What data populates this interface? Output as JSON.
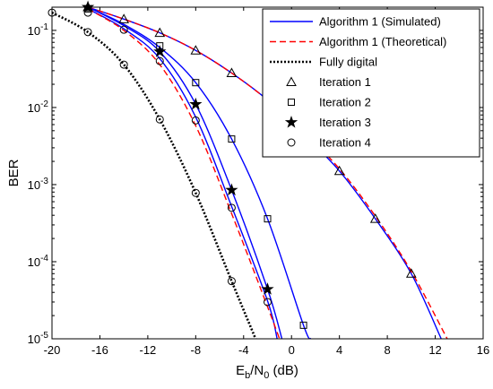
{
  "chart_data": {
    "type": "line",
    "title": "",
    "xlabel": {
      "main": "E",
      "sub1": "b",
      "mid": "/N",
      "sub2": "0",
      "tail": " (dB)"
    },
    "ylabel": "BER",
    "xlim": [
      -20,
      16
    ],
    "ylim": [
      1e-05,
      0.2
    ],
    "y_scale": "log",
    "x_ticks": [
      -20,
      -16,
      -12,
      -8,
      -4,
      0,
      4,
      8,
      12,
      16
    ],
    "x_tick_labels": [
      "-20",
      "-16",
      "-12",
      "-8",
      "-4",
      "0",
      "4",
      "8",
      "12",
      "16"
    ],
    "y_ticks": [
      {
        "value": 0.1,
        "base": "10",
        "exp": "-1"
      },
      {
        "value": 0.01,
        "base": "10",
        "exp": "-2"
      },
      {
        "value": 0.001,
        "base": "10",
        "exp": "-3"
      },
      {
        "value": 0.0001,
        "base": "10",
        "exp": "-4"
      },
      {
        "value": 1e-05,
        "base": "10",
        "exp": "-5"
      }
    ],
    "legend_position": "top-right",
    "legend": [
      {
        "label": "Algorithm 1 (Simulated)",
        "style": "line",
        "color": "#0000ff",
        "dash": ""
      },
      {
        "label": "Algorithm 1 (Theoretical)",
        "style": "line",
        "color": "#ff0000",
        "dash": "7,4"
      },
      {
        "label": "Fully digital",
        "style": "line",
        "color": "#000000",
        "dash": "2,2"
      },
      {
        "label": "Iteration 1",
        "style": "marker",
        "marker": "triangle"
      },
      {
        "label": "Iteration 2",
        "style": "marker",
        "marker": "square"
      },
      {
        "label": "Iteration 3",
        "style": "marker",
        "marker": "star"
      },
      {
        "label": "Iteration 4",
        "style": "marker",
        "marker": "circle"
      }
    ],
    "series": [
      {
        "name": "Iteration 1",
        "kind": "simulated",
        "color": "#0000ff",
        "dash": "",
        "marker": "triangle",
        "x": [
          -17,
          -14,
          -11,
          -8,
          -5,
          -2,
          1,
          4,
          7,
          10,
          12.5
        ],
        "y": [
          0.2,
          0.14,
          0.093,
          0.055,
          0.028,
          0.0125,
          0.0045,
          0.0015,
          0.00036,
          7e-05,
          1e-05
        ],
        "marker_x": [
          -17,
          -14,
          -11,
          -8,
          -5,
          -2,
          4,
          7,
          10
        ],
        "marker_y": [
          0.2,
          0.14,
          0.093,
          0.055,
          0.028,
          0.0125,
          0.0015,
          0.00036,
          7e-05
        ]
      },
      {
        "name": "Iteration 1 (Theoretical)",
        "kind": "theoretical",
        "color": "#ff0000",
        "dash": "7,4",
        "x": [
          -17,
          -14,
          -11,
          -8,
          -5,
          -2,
          1,
          4,
          7,
          10,
          13
        ],
        "y": [
          0.2,
          0.14,
          0.093,
          0.055,
          0.028,
          0.0125,
          0.0048,
          0.0016,
          0.00039,
          7.5e-05,
          1e-05
        ]
      },
      {
        "name": "Iteration 2",
        "kind": "simulated",
        "color": "#0000ff",
        "dash": "",
        "marker": "square",
        "x": [
          -17,
          -14,
          -11,
          -8,
          -5,
          -2,
          1,
          1.6
        ],
        "y": [
          0.2,
          0.12,
          0.06,
          0.021,
          0.0039,
          0.00036,
          1.5e-05,
          1e-05
        ],
        "marker_x": [
          -17,
          -11,
          -8,
          -5,
          -2,
          1
        ],
        "marker_y": [
          0.19,
          0.063,
          0.021,
          0.0039,
          0.00036,
          1.5e-05
        ]
      },
      {
        "name": "Iteration 3",
        "kind": "simulated",
        "color": "#0000ff",
        "dash": "",
        "marker": "star",
        "x": [
          -17,
          -14,
          -11,
          -8,
          -5,
          -2,
          -0.8
        ],
        "y": [
          0.2,
          0.115,
          0.053,
          0.011,
          0.00085,
          4.4e-05,
          1e-05
        ],
        "marker_x": [
          -17,
          -11,
          -8,
          -5,
          -2
        ],
        "marker_y": [
          0.2,
          0.053,
          0.011,
          0.00085,
          4.4e-05
        ]
      },
      {
        "name": "Iteration 4",
        "kind": "simulated",
        "color": "#0000ff",
        "dash": "",
        "marker": "circle",
        "x": [
          -17,
          -14,
          -11,
          -8,
          -5,
          -2,
          -1.2
        ],
        "y": [
          0.19,
          0.105,
          0.043,
          0.0075,
          0.00052,
          3.1e-05,
          1e-05
        ],
        "marker_x": [
          -17,
          -14,
          -11,
          -8,
          -5,
          -2
        ],
        "marker_y": [
          0.17,
          0.102,
          0.04,
          0.0068,
          0.0005,
          3e-05
        ]
      },
      {
        "name": "Iteration 4 (Theoretical)",
        "kind": "theoretical",
        "color": "#ff0000",
        "dash": "7,4",
        "x": [
          -17,
          -14,
          -11,
          -8,
          -5,
          -2,
          -1
        ],
        "y": [
          0.19,
          0.1,
          0.036,
          0.0058,
          0.00042,
          2.6e-05,
          1e-05
        ]
      },
      {
        "name": "Fully digital",
        "kind": "reference",
        "color": "#000000",
        "dash": "2,2",
        "marker": "circle",
        "x": [
          -20,
          -17,
          -14,
          -11,
          -8,
          -5,
          -3
        ],
        "y": [
          0.17,
          0.095,
          0.036,
          0.007,
          0.00078,
          5.6e-05,
          1e-05
        ],
        "marker_x": [
          -20,
          -17,
          -14,
          -11,
          -8,
          -5
        ],
        "marker_y": [
          0.17,
          0.095,
          0.036,
          0.007,
          0.00078,
          5.6e-05
        ]
      }
    ]
  }
}
